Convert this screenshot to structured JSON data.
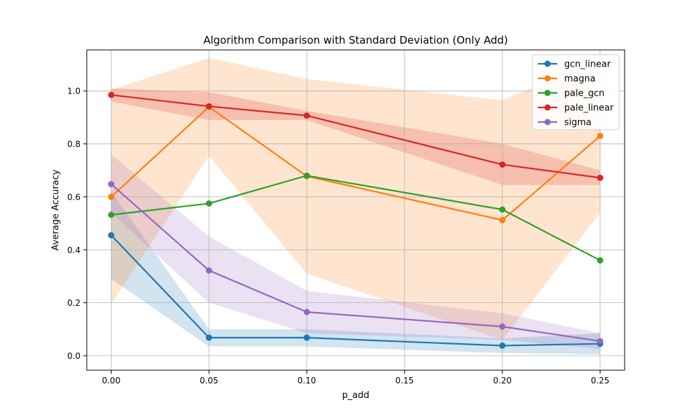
{
  "chart_data": {
    "type": "line",
    "title": "Algorithm Comparison with Standard Deviation (Only Add)",
    "xlabel": "p_add",
    "ylabel": "Average Accuracy",
    "x": [
      0.0,
      0.05,
      0.1,
      0.2,
      0.25
    ],
    "xlim": [
      -0.0125,
      0.2625
    ],
    "ylim": [
      -0.055,
      1.155
    ],
    "x_ticks": [
      0.0,
      0.05,
      0.1,
      0.15,
      0.2,
      0.25
    ],
    "x_tick_labels": [
      "0.00",
      "0.05",
      "0.10",
      "0.15",
      "0.20",
      "0.25"
    ],
    "y_ticks": [
      0.0,
      0.2,
      0.4,
      0.6,
      0.8,
      1.0
    ],
    "y_tick_labels": [
      "0.0",
      "0.2",
      "0.4",
      "0.6",
      "0.8",
      "1.0"
    ],
    "grid": true,
    "legend_position": "top-right",
    "series": [
      {
        "name": "gcn_linear",
        "color": "#1f77b4",
        "values": [
          0.455,
          0.068,
          0.068,
          0.038,
          0.045
        ],
        "lower": [
          0.29,
          0.035,
          0.035,
          0.01,
          0.005
        ],
        "upper": [
          0.62,
          0.1,
          0.1,
          0.065,
          0.085
        ]
      },
      {
        "name": "magna",
        "color": "#ff7f0e",
        "values": [
          0.6,
          0.94,
          0.678,
          0.512,
          0.83
        ],
        "lower": [
          0.195,
          0.755,
          0.31,
          0.06,
          0.54
        ],
        "upper": [
          1.005,
          1.125,
          1.045,
          0.965,
          1.12
        ]
      },
      {
        "name": "pale_gcn",
        "color": "#2ca02c",
        "values": [
          0.532,
          0.575,
          0.68,
          0.552,
          0.36
        ],
        "lower": [
          0.532,
          0.575,
          0.68,
          0.552,
          0.36
        ],
        "upper": [
          0.532,
          0.575,
          0.68,
          0.552,
          0.36
        ]
      },
      {
        "name": "pale_linear",
        "color": "#d62728",
        "values": [
          0.985,
          0.942,
          0.907,
          0.722,
          0.672
        ],
        "lower": [
          0.96,
          0.89,
          0.89,
          0.645,
          0.645
        ],
        "upper": [
          1.01,
          0.995,
          0.925,
          0.8,
          0.7
        ]
      },
      {
        "name": "sigma",
        "color": "#9467bd",
        "values": [
          0.648,
          0.322,
          0.165,
          0.11,
          0.055
        ],
        "lower": [
          0.54,
          0.2,
          0.085,
          0.06,
          0.025
        ],
        "upper": [
          0.76,
          0.45,
          0.245,
          0.16,
          0.085
        ]
      }
    ]
  }
}
